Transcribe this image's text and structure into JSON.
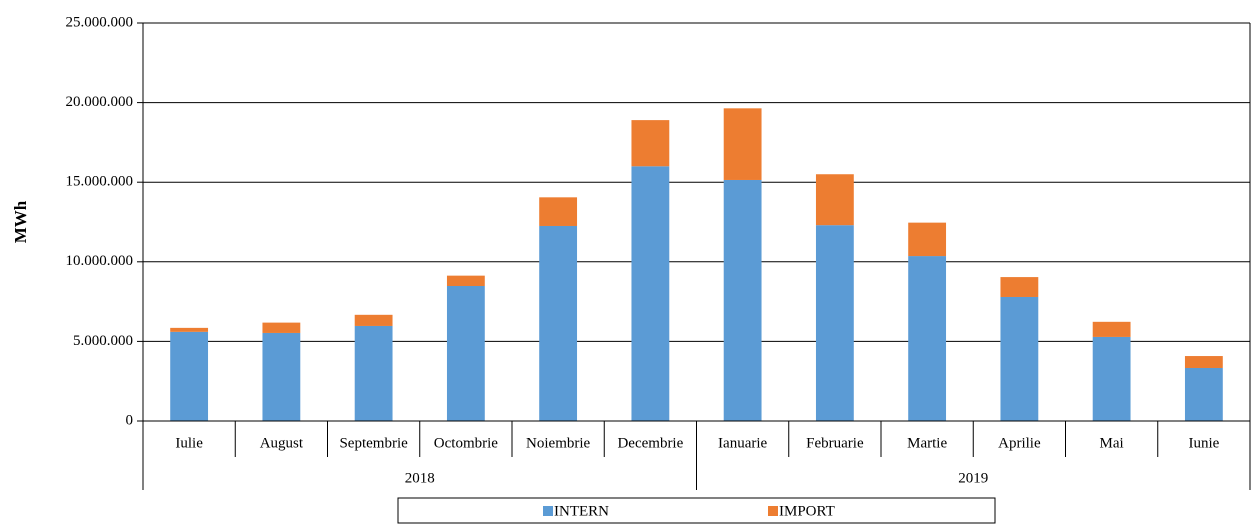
{
  "chart_data": {
    "type": "stacked_bar",
    "y_label": "MWh",
    "groups": [
      {
        "label": "2018",
        "categories": [
          "Iulie",
          "August",
          "Septembrie",
          "Octombrie",
          "Noiembrie",
          "Decembrie"
        ]
      },
      {
        "label": "2019",
        "categories": [
          "Ianuarie",
          "Februarie",
          "Martie",
          "Aprilie",
          "Mai",
          "Iunie"
        ]
      }
    ],
    "series": [
      {
        "name": "INTERN",
        "color": "#5b9bd5",
        "values": [
          5600000,
          5530000,
          5970000,
          8480000,
          12250000,
          16000000,
          15140000,
          12300000,
          10360000,
          7790000,
          5280000,
          3330000
        ]
      },
      {
        "name": "IMPORT",
        "color": "#ed7d31",
        "values": [
          250000,
          650000,
          700000,
          650000,
          1800000,
          2900000,
          4500000,
          3200000,
          2100000,
          1250000,
          950000,
          750000
        ]
      }
    ],
    "ylim": [
      0,
      25000000
    ],
    "yticks": [
      0,
      {
        "value": 5000000,
        "label": "5.000.000"
      },
      {
        "value": 10000000,
        "label": "10.000.000"
      },
      {
        "value": 15000000,
        "label": "15.000.000"
      },
      {
        "value": 20000000,
        "label": "20.000.000"
      },
      {
        "value": 25000000,
        "label": "25.000.000"
      }
    ],
    "grid": true,
    "legend": "bottom"
  }
}
